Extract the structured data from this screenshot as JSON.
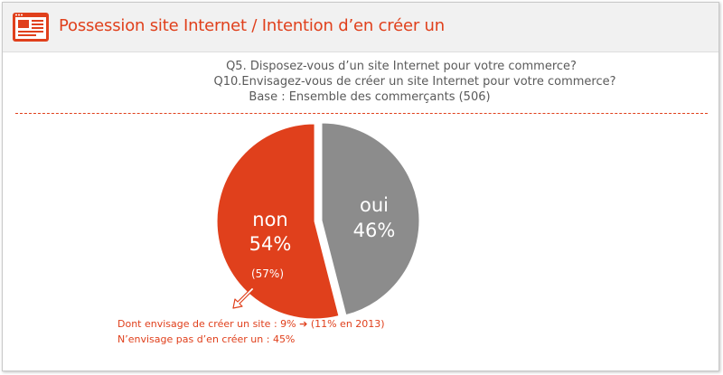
{
  "header": {
    "title": "Possession site Internet / Intention d’en créer un"
  },
  "questions": {
    "q5": "Q5. Disposez-vous d’un site Internet pour votre commerce?",
    "q10": "Q10.Envisagez-vous de créer un site Internet pour votre commerce?",
    "base": "Base : Ensemble des commerçants (506)"
  },
  "chart_data": {
    "type": "pie",
    "slices": [
      {
        "label": "oui",
        "value": 46,
        "value_label": "46%",
        "color": "#8c8c8c"
      },
      {
        "label": "non",
        "value": 54,
        "value_label": "54%",
        "color": "#e0401c",
        "exploded": true,
        "note": "(57%)"
      }
    ],
    "legend": "none"
  },
  "notes": {
    "line1_prefix": "Dont envisage de créer un site : 9%",
    "line1_arrow": "➔",
    "line1_suffix": "(11% en 2013)",
    "line2": "N’envisage pas d’en créer un : 45%"
  },
  "colors": {
    "accent": "#e0401c",
    "gray_slice": "#8c8c8c",
    "header_bg": "#f1f1f1"
  }
}
